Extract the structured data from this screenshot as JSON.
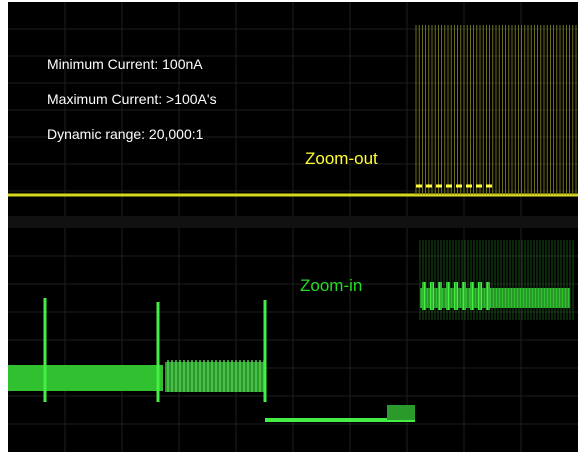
{
  "annotations": {
    "minimum_current": "Minimum Current:  100nA",
    "maximum_current": "Maximum Current: >100A's",
    "dynamic_range": "Dynamic range:  20,000:1",
    "zoom_out": "Zoom-out",
    "zoom_in": "Zoom-in"
  }
}
